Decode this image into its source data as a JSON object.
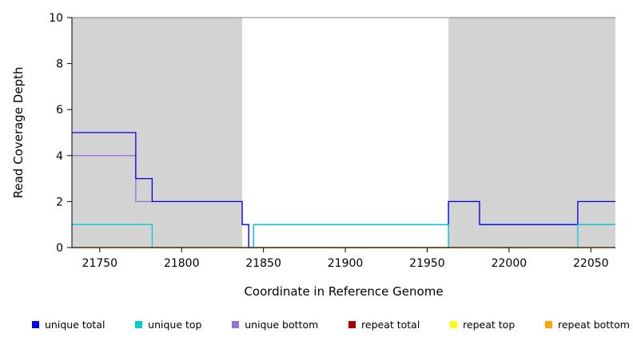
{
  "chart_data": {
    "type": "line",
    "subtype": "step",
    "title": "",
    "xlabel": "Coordinate in Reference Genome",
    "ylabel": "Read Coverage Depth",
    "xlim": [
      21733,
      22065
    ],
    "ylim": [
      0,
      10
    ],
    "xticks": [
      21750,
      21800,
      21850,
      21900,
      21950,
      22000,
      22050
    ],
    "yticks": [
      0,
      2,
      4,
      6,
      8,
      10
    ],
    "background_color": "#ffffff",
    "shaded_region_color": "#d3d3d3",
    "shaded_regions": [
      [
        21733,
        21837
      ],
      [
        21963,
        22065
      ]
    ],
    "top_border": {
      "y": 10,
      "color": "#808080"
    },
    "series": [
      {
        "name": "unique bottom",
        "color": "#9370DB",
        "steps": [
          [
            21733,
            4
          ],
          [
            21772,
            2
          ],
          [
            21837,
            1
          ],
          [
            21841,
            0
          ],
          [
            21963,
            2
          ],
          [
            21982,
            1
          ]
        ]
      },
      {
        "name": "unique total",
        "color": "#0000EE",
        "steps": [
          [
            21733,
            5
          ],
          [
            21772,
            3
          ],
          [
            21782,
            2
          ],
          [
            21837,
            1
          ],
          [
            21841,
            0
          ],
          [
            21844,
            1
          ],
          [
            21963,
            2
          ],
          [
            21982,
            1
          ],
          [
            22042,
            2
          ]
        ]
      },
      {
        "name": "unique top",
        "color": "#00CDCD",
        "steps": [
          [
            21733,
            1
          ],
          [
            21782,
            0
          ],
          [
            21844,
            1
          ],
          [
            21963,
            0
          ],
          [
            22042,
            1
          ]
        ]
      },
      {
        "name": "repeat total",
        "color": "#AA0000",
        "steps": [
          [
            21733,
            0
          ]
        ]
      },
      {
        "name": "repeat top",
        "color": "#FFFF00",
        "steps": [
          [
            21733,
            0
          ]
        ]
      },
      {
        "name": "repeat bottom",
        "color": "#FFA500",
        "steps": [
          [
            21733,
            0
          ]
        ]
      }
    ],
    "legend": [
      {
        "label": "unique total",
        "color": "#0000EE"
      },
      {
        "label": "unique top",
        "color": "#00CDCD"
      },
      {
        "label": "unique bottom",
        "color": "#9370DB"
      },
      {
        "label": "repeat total",
        "color": "#AA0000"
      },
      {
        "label": "repeat top",
        "color": "#FFFF00"
      },
      {
        "label": "repeat bottom",
        "color": "#FFA500"
      }
    ]
  }
}
